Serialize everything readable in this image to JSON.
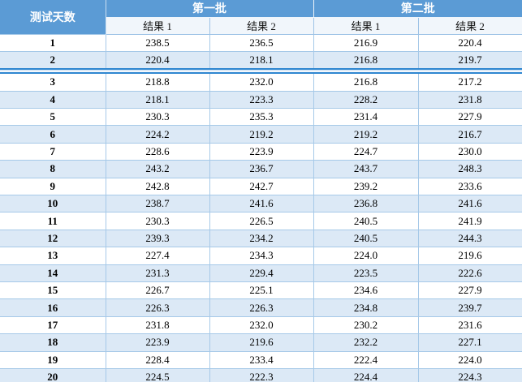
{
  "table": {
    "corner_header": "测试天数",
    "groups": [
      {
        "label": "第一批",
        "sub_headers": [
          "结果 1",
          "结果 2"
        ]
      },
      {
        "label": "第二批",
        "sub_headers": [
          "结果 1",
          "结果 2"
        ]
      }
    ],
    "divider_after_day": 2,
    "rows": [
      {
        "day": "1",
        "values": [
          "238.5",
          "236.5",
          "216.9",
          "220.4"
        ]
      },
      {
        "day": "2",
        "values": [
          "220.4",
          "218.1",
          "216.8",
          "219.7"
        ]
      },
      {
        "day": "3",
        "values": [
          "218.8",
          "232.0",
          "216.8",
          "217.2"
        ]
      },
      {
        "day": "4",
        "values": [
          "218.1",
          "223.3",
          "228.2",
          "231.8"
        ]
      },
      {
        "day": "5",
        "values": [
          "230.3",
          "235.3",
          "231.4",
          "227.9"
        ]
      },
      {
        "day": "6",
        "values": [
          "224.2",
          "219.2",
          "219.2",
          "216.7"
        ]
      },
      {
        "day": "7",
        "values": [
          "228.6",
          "223.9",
          "224.7",
          "230.0"
        ]
      },
      {
        "day": "8",
        "values": [
          "243.2",
          "236.7",
          "243.7",
          "248.3"
        ]
      },
      {
        "day": "9",
        "values": [
          "242.8",
          "242.7",
          "239.2",
          "233.6"
        ]
      },
      {
        "day": "10",
        "values": [
          "238.7",
          "241.6",
          "236.8",
          "241.6"
        ]
      },
      {
        "day": "11",
        "values": [
          "230.3",
          "226.5",
          "240.5",
          "241.9"
        ]
      },
      {
        "day": "12",
        "values": [
          "239.3",
          "234.2",
          "240.5",
          "244.3"
        ]
      },
      {
        "day": "13",
        "values": [
          "227.4",
          "234.3",
          "224.0",
          "219.6"
        ]
      },
      {
        "day": "14",
        "values": [
          "231.3",
          "229.4",
          "223.5",
          "222.6"
        ]
      },
      {
        "day": "15",
        "values": [
          "226.7",
          "225.1",
          "234.6",
          "227.9"
        ]
      },
      {
        "day": "16",
        "values": [
          "226.3",
          "226.3",
          "234.8",
          "239.7"
        ]
      },
      {
        "day": "17",
        "values": [
          "231.8",
          "232.0",
          "230.2",
          "231.6"
        ]
      },
      {
        "day": "18",
        "values": [
          "223.9",
          "219.6",
          "232.2",
          "227.1"
        ]
      },
      {
        "day": "19",
        "values": [
          "228.4",
          "233.4",
          "222.4",
          "224.0"
        ]
      },
      {
        "day": "20",
        "values": [
          "224.5",
          "222.3",
          "224.4",
          "224.3"
        ]
      }
    ]
  },
  "colors": {
    "header_bg": "#5B9BD5",
    "header_text": "#FFFFFF",
    "band_bg": "#DCE9F6",
    "grid": "#A6C9E8",
    "subheader_bg": "#F1F6FB",
    "divider": "#2E86D0"
  }
}
